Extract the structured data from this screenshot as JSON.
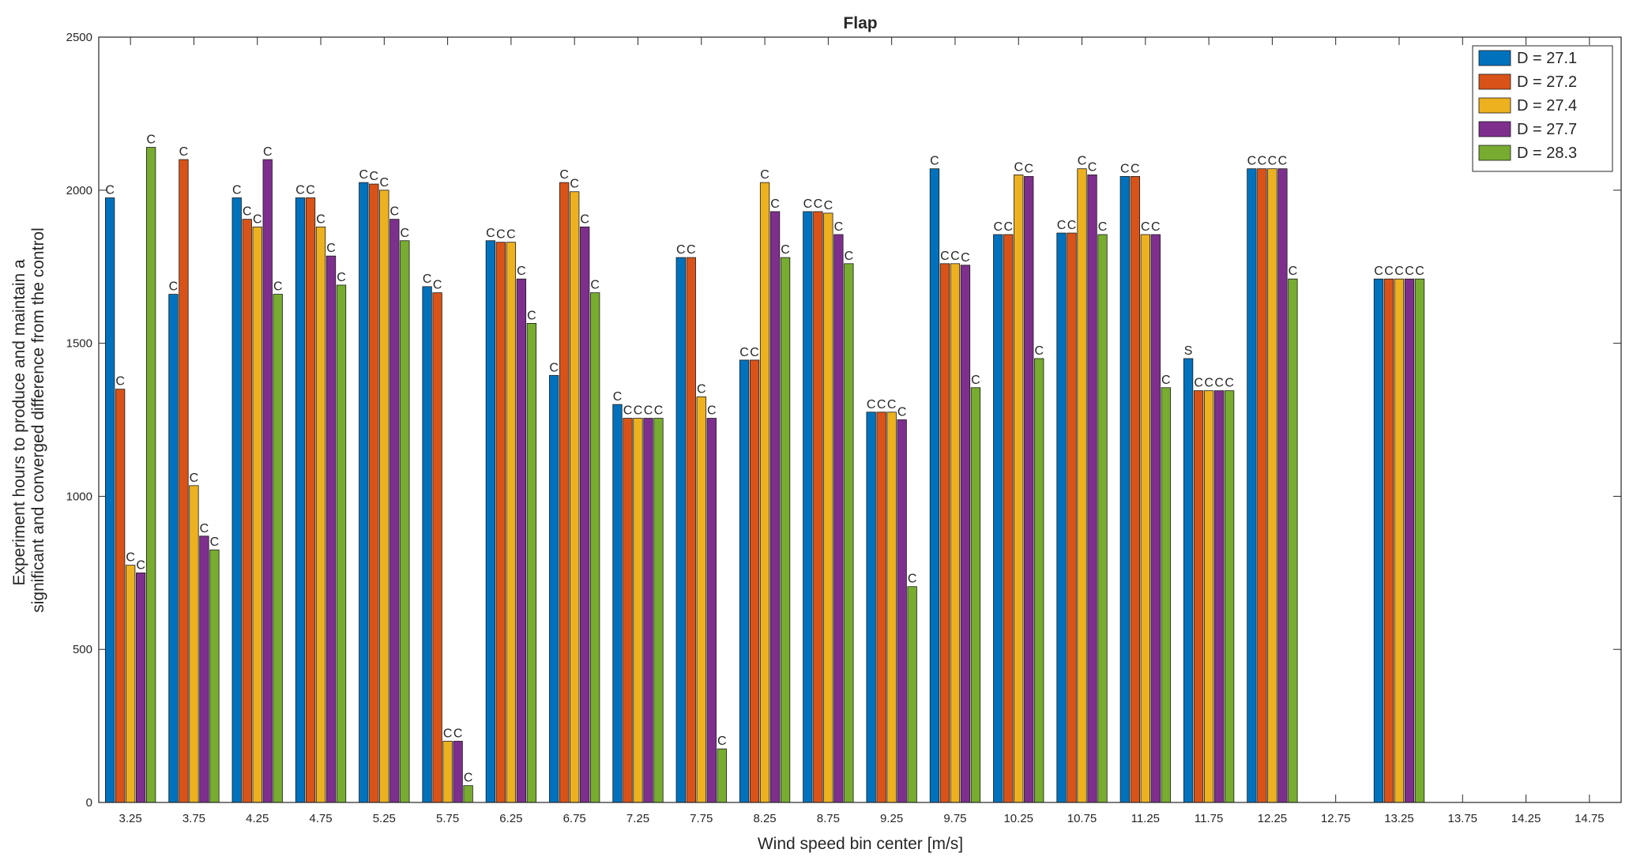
{
  "chart_data": {
    "type": "bar",
    "title": "Flap",
    "xlabel": "Wind speed bin center [m/s]",
    "ylabel": [
      "Experiment hours to produce and maintain a",
      "significant and converged difference from the control"
    ],
    "ylim": [
      0,
      2500
    ],
    "yticks": [
      0,
      500,
      1000,
      1500,
      2000,
      2500
    ],
    "grid": false,
    "legend_position": "top-right",
    "categories": [
      "3.25",
      "3.75",
      "4.25",
      "4.75",
      "5.25",
      "5.75",
      "6.25",
      "6.75",
      "7.25",
      "7.75",
      "8.25",
      "8.75",
      "9.25",
      "9.75",
      "10.25",
      "10.75",
      "11.25",
      "11.75",
      "12.25",
      "12.75",
      "13.25",
      "13.75",
      "14.25",
      "14.75"
    ],
    "series": [
      {
        "name": "D = 27.1",
        "color": "#0072BD",
        "values": [
          1975,
          1660,
          1975,
          1975,
          2025,
          1685,
          1835,
          1395,
          1300,
          1780,
          1445,
          1930,
          1275,
          2070,
          1855,
          1860,
          2045,
          1450,
          2070,
          null,
          1710,
          null,
          null,
          null
        ],
        "labels": [
          "C",
          "C",
          "C",
          "C",
          "C",
          "C",
          "C",
          "C",
          "C",
          "C",
          "C",
          "C",
          "C",
          "C",
          "C",
          "C",
          "C",
          "S",
          "C",
          "",
          "C",
          "",
          "",
          ""
        ]
      },
      {
        "name": "D = 27.2",
        "color": "#D95319",
        "values": [
          1350,
          2100,
          1905,
          1975,
          2020,
          1665,
          1830,
          2025,
          1255,
          1780,
          1445,
          1930,
          1275,
          1760,
          1855,
          1860,
          2045,
          1345,
          2070,
          null,
          1710,
          null,
          null,
          null
        ],
        "labels": [
          "C",
          "C",
          "C",
          "C",
          "C",
          "C",
          "C",
          "C",
          "C",
          "C",
          "C",
          "C",
          "C",
          "C",
          "C",
          "C",
          "C",
          "C",
          "C",
          "",
          "C",
          "",
          "",
          ""
        ]
      },
      {
        "name": "D = 27.4",
        "color": "#EDB120",
        "values": [
          775,
          1035,
          1880,
          1880,
          2000,
          200,
          1830,
          1995,
          1255,
          1325,
          2025,
          1925,
          1275,
          1760,
          2050,
          2070,
          1855,
          1345,
          2070,
          null,
          1710,
          null,
          null,
          null
        ],
        "labels": [
          "C",
          "C",
          "C",
          "C",
          "C",
          "C",
          "C",
          "C",
          "C",
          "C",
          "C",
          "C",
          "C",
          "C",
          "C",
          "C",
          "C",
          "C",
          "C",
          "",
          "C",
          "",
          "",
          ""
        ]
      },
      {
        "name": "D = 27.7",
        "color": "#7E2F8E",
        "values": [
          750,
          870,
          2100,
          1785,
          1905,
          200,
          1710,
          1880,
          1255,
          1255,
          1930,
          1855,
          1250,
          1755,
          2045,
          2050,
          1855,
          1345,
          2070,
          null,
          1710,
          null,
          null,
          null
        ],
        "labels": [
          "C",
          "C",
          "C",
          "C",
          "C",
          "C",
          "C",
          "C",
          "C",
          "C",
          "C",
          "C",
          "C",
          "C",
          "C",
          "C",
          "C",
          "C",
          "C",
          "",
          "C",
          "",
          "",
          ""
        ]
      },
      {
        "name": "D = 28.3",
        "color": "#77AC30",
        "values": [
          2140,
          825,
          1660,
          1690,
          1835,
          55,
          1565,
          1665,
          1255,
          175,
          1780,
          1760,
          705,
          1355,
          1450,
          1855,
          1355,
          1345,
          1710,
          null,
          1710,
          null,
          null,
          null
        ],
        "labels": [
          "C",
          "C",
          "C",
          "C",
          "C",
          "C",
          "C",
          "C",
          "C",
          "C",
          "C",
          "C",
          "C",
          "C",
          "C",
          "C",
          "C",
          "C",
          "C",
          "",
          "C",
          "",
          "",
          ""
        ]
      }
    ]
  }
}
